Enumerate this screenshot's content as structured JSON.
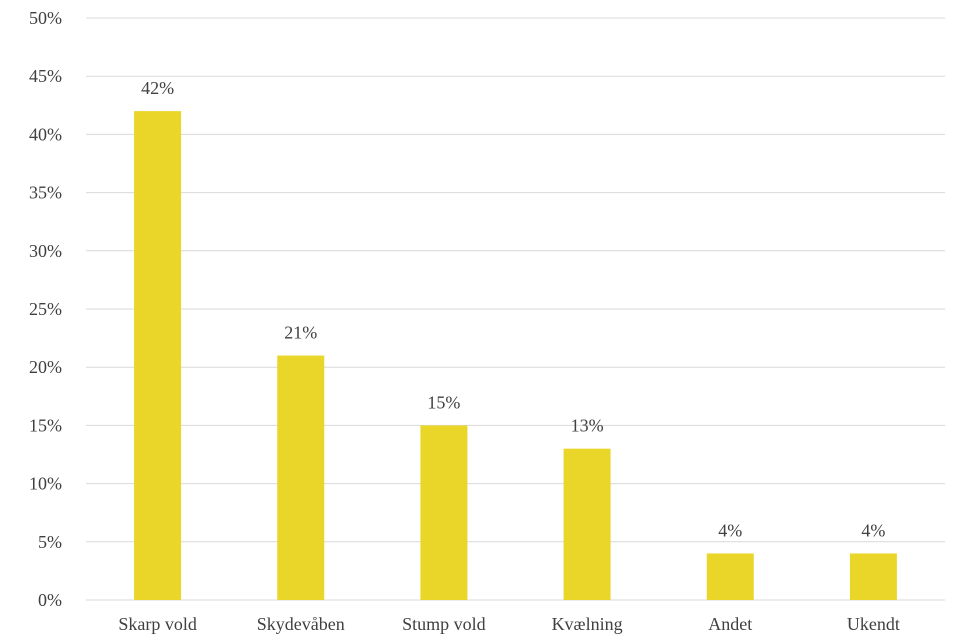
{
  "chart_data": {
    "type": "bar",
    "title": "",
    "xlabel": "",
    "ylabel": "",
    "categories": [
      "Skarp vold",
      "Skydevåben",
      "Stump vold",
      "Kvælning",
      "Andet",
      "Ukendt"
    ],
    "values": [
      42,
      21,
      15,
      13,
      4,
      4
    ],
    "data_labels": [
      "42%",
      "21%",
      "15%",
      "13%",
      "4%",
      "4%"
    ],
    "ylim": [
      0,
      50
    ],
    "yticks": [
      0,
      5,
      10,
      15,
      20,
      25,
      30,
      35,
      40,
      45,
      50
    ],
    "ytick_labels": [
      "0%",
      "5%",
      "10%",
      "15%",
      "20%",
      "25%",
      "30%",
      "35%",
      "40%",
      "45%",
      "50%"
    ],
    "grid": true,
    "legend": "none",
    "bar_color": "#ead628",
    "grid_color": "#d9d9d9",
    "text_color": "#404040"
  }
}
